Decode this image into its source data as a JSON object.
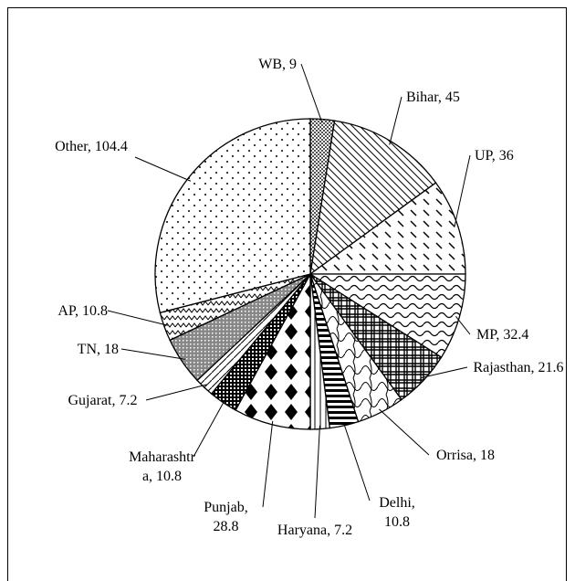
{
  "chart_data": {
    "type": "pie",
    "categories": [
      "WB",
      "Bihar",
      "UP",
      "MP",
      "Rajasthan",
      "Orrisa",
      "Delhi",
      "Haryana",
      "Punjab",
      "Maharashtra",
      "Gujarat",
      "TN",
      "AP",
      "Other"
    ],
    "values": [
      9,
      45,
      36,
      32.4,
      21.6,
      18,
      10.8,
      7.2,
      28.8,
      10.8,
      7.2,
      18,
      10.8,
      104.4
    ]
  }
}
